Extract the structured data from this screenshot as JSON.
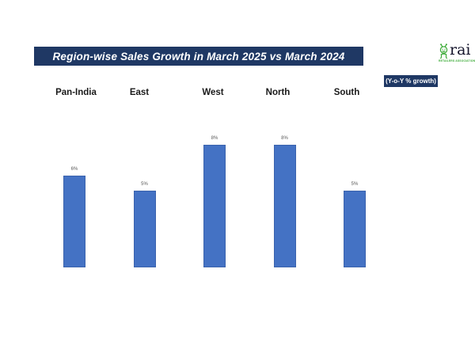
{
  "page": {
    "background": "#ffffff"
  },
  "header": {
    "title": "Region-wise Sales Growth in March 2025 vs March 2024",
    "title_bg": "#1f3864",
    "title_color": "#ffffff"
  },
  "logo": {
    "name": "rai",
    "tagline": "RETAILERS ASSOCIATION OF INDIA",
    "mascot_icon": "robot-mascot-icon",
    "mascot_color": "#3aaa35",
    "text_color": "#14142b"
  },
  "badge": {
    "label": "(Y-o-Y % growth)",
    "bg": "#1f3864",
    "color": "#ffffff"
  },
  "chart_data": {
    "type": "bar",
    "title": "Region-wise Sales Growth in March 2025 vs March 2024",
    "unit": "Y-o-Y % growth",
    "categories": [
      "Pan-India",
      "East",
      "West",
      "North",
      "South"
    ],
    "values": [
      6,
      5,
      8,
      8,
      5
    ],
    "value_labels": [
      "6%",
      "5%",
      "8%",
      "8%",
      "5%"
    ],
    "bar_color": "#4472c4",
    "bar_border": "#3b63ad",
    "label_color": "#595959",
    "ylim": [
      0,
      8.5
    ],
    "grid": false,
    "legend": "none",
    "axis_lines": "none",
    "category_label_position": "top"
  }
}
